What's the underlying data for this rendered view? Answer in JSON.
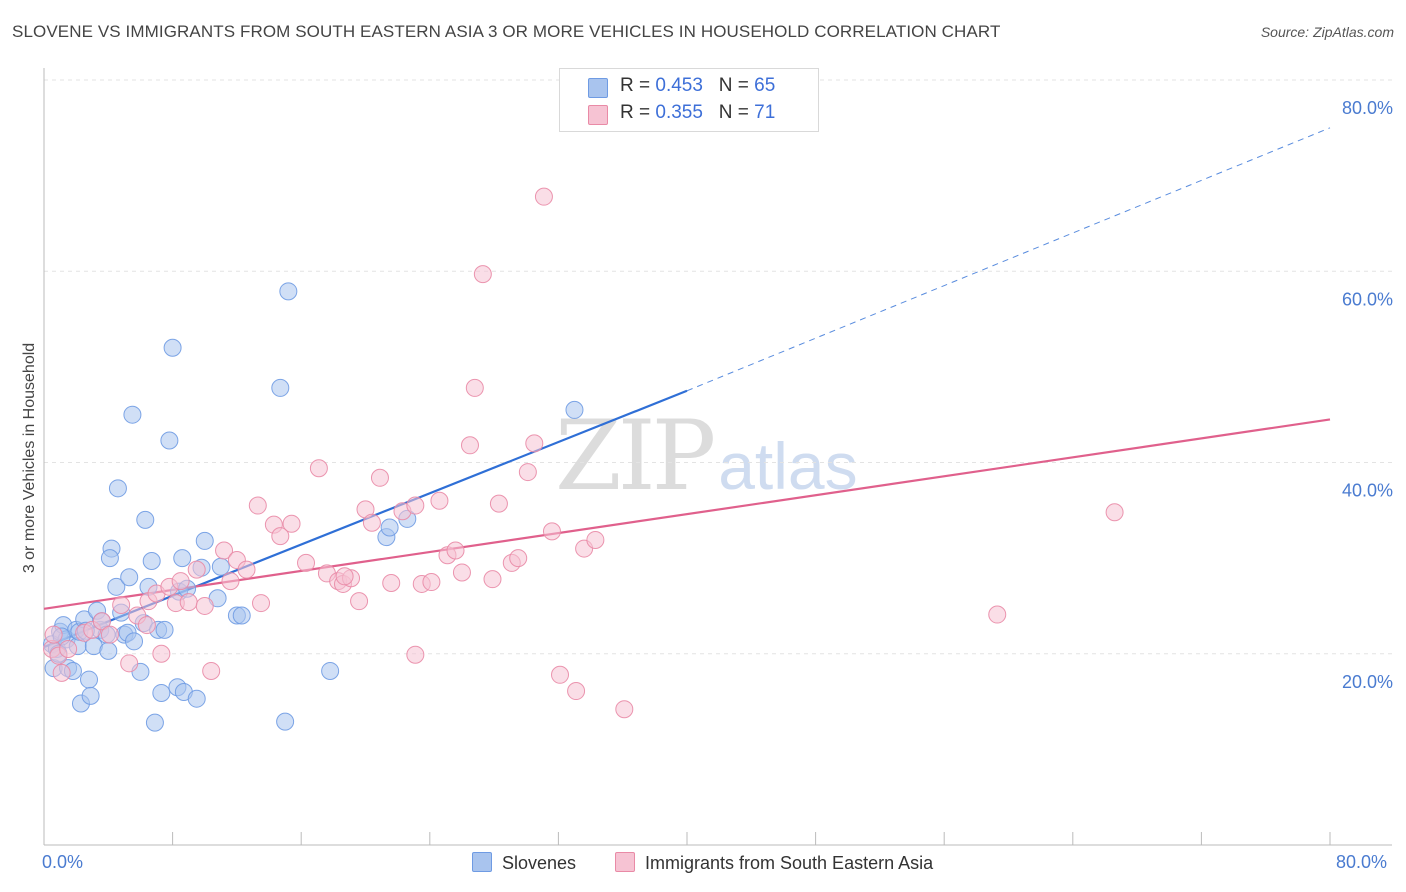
{
  "header": {
    "title": "SLOVENE VS IMMIGRANTS FROM SOUTH EASTERN ASIA 3 OR MORE VEHICLES IN HOUSEHOLD CORRELATION CHART",
    "source_label": "Source:",
    "source_value": "ZipAtlas.com"
  },
  "watermark": {
    "zip": "ZIP",
    "atlas": "atlas"
  },
  "legend": {
    "items": [
      {
        "r_label": "R =",
        "r_value": "0.453",
        "n_label": "N =",
        "n_value": "65"
      },
      {
        "r_label": "R =",
        "r_value": "0.355",
        "n_label": "N =",
        "n_value": "71"
      }
    ]
  },
  "chart_data": {
    "type": "scatter",
    "ylabel": "3 or more Vehicles in Household",
    "xlabel": "",
    "x_axis": {
      "min_label": "0.0%",
      "max_label": "80.0%"
    },
    "xlim": [
      0,
      80
    ],
    "ylim": [
      0,
      82
    ],
    "y_ticks": [
      {
        "value": 20,
        "label": "20.0%"
      },
      {
        "value": 40,
        "label": "40.0%"
      },
      {
        "value": 60,
        "label": "60.0%"
      },
      {
        "value": 80,
        "label": "80.0%"
      }
    ],
    "grid": true,
    "legend_position": "bottom",
    "series": [
      {
        "name": "Slovenes",
        "color": "#6f9be3",
        "fill": "#a9c4ee",
        "trend": {
          "x0": 0,
          "y0": 20.7,
          "x1": 40,
          "y1": 47.5,
          "dash_to_x": 80,
          "dash_y": 75,
          "color": "#2f6fd6"
        },
        "points": [
          [
            0.5,
            21
          ],
          [
            0.6,
            18.5
          ],
          [
            0.8,
            20.5
          ],
          [
            1,
            22.3
          ],
          [
            1.2,
            23
          ],
          [
            1.4,
            21.5
          ],
          [
            1.5,
            18.5
          ],
          [
            1.8,
            18.2
          ],
          [
            2,
            22.5
          ],
          [
            2.1,
            20.8
          ],
          [
            2.2,
            22.3
          ],
          [
            2.3,
            14.8
          ],
          [
            2.5,
            23.6
          ],
          [
            2.8,
            17.3
          ],
          [
            2.9,
            15.6
          ],
          [
            3.1,
            20.8
          ],
          [
            3.3,
            24.5
          ],
          [
            3.5,
            22.5
          ],
          [
            3.6,
            23.4
          ],
          [
            3.9,
            22
          ],
          [
            4,
            20.3
          ],
          [
            4.2,
            31
          ],
          [
            4.1,
            30
          ],
          [
            4.5,
            27
          ],
          [
            4.6,
            37.3
          ],
          [
            4.8,
            24.3
          ],
          [
            5,
            22
          ],
          [
            5.2,
            22.2
          ],
          [
            5.3,
            28
          ],
          [
            5.5,
            45
          ],
          [
            5.6,
            21.3
          ],
          [
            6,
            18.1
          ],
          [
            6.2,
            23.2
          ],
          [
            6.3,
            34
          ],
          [
            6.5,
            27
          ],
          [
            6.7,
            29.7
          ],
          [
            6.9,
            12.8
          ],
          [
            7.1,
            22.5
          ],
          [
            7.3,
            15.9
          ],
          [
            7.5,
            22.5
          ],
          [
            7.8,
            42.3
          ],
          [
            8,
            52
          ],
          [
            8.3,
            16.5
          ],
          [
            8.4,
            26.5
          ],
          [
            8.6,
            30
          ],
          [
            8.7,
            16
          ],
          [
            8.9,
            26.8
          ],
          [
            9.5,
            15.3
          ],
          [
            9.8,
            29
          ],
          [
            10,
            31.8
          ],
          [
            10.8,
            25.8
          ],
          [
            11,
            29.1
          ],
          [
            12,
            24
          ],
          [
            12.3,
            24
          ],
          [
            14.7,
            47.8
          ],
          [
            15,
            12.9
          ],
          [
            15.2,
            57.9
          ],
          [
            17.8,
            18.2
          ],
          [
            21.3,
            32.2
          ],
          [
            21.5,
            33.2
          ],
          [
            22.6,
            34.1
          ],
          [
            33,
            45.5
          ],
          [
            0.9,
            20
          ],
          [
            1.1,
            21.8
          ],
          [
            2.6,
            22.4
          ]
        ]
      },
      {
        "name": "Immigrants from South Eastern Asia",
        "color": "#e98aa6",
        "fill": "#f6c3d3",
        "trend": {
          "x0": 0,
          "y0": 24.7,
          "x1": 80,
          "y1": 44.5,
          "color": "#e0608c"
        },
        "points": [
          [
            0.5,
            20.5
          ],
          [
            0.6,
            22
          ],
          [
            0.9,
            19.8
          ],
          [
            1.1,
            18
          ],
          [
            1.5,
            20.5
          ],
          [
            2.5,
            22.2
          ],
          [
            3,
            22.5
          ],
          [
            3.6,
            23.4
          ],
          [
            4.1,
            22
          ],
          [
            4.8,
            25.1
          ],
          [
            5.3,
            19
          ],
          [
            5.8,
            24
          ],
          [
            6.4,
            23
          ],
          [
            6.5,
            25.5
          ],
          [
            7,
            26.3
          ],
          [
            7.3,
            20
          ],
          [
            7.8,
            27
          ],
          [
            8.2,
            25.3
          ],
          [
            8.5,
            27.6
          ],
          [
            9,
            25.4
          ],
          [
            9.5,
            28.8
          ],
          [
            10,
            25
          ],
          [
            10.4,
            18.2
          ],
          [
            11.2,
            30.8
          ],
          [
            11.6,
            27.6
          ],
          [
            12,
            29.8
          ],
          [
            12.6,
            28.8
          ],
          [
            13.3,
            35.5
          ],
          [
            13.5,
            25.3
          ],
          [
            14.3,
            33.5
          ],
          [
            14.7,
            32.3
          ],
          [
            15.4,
            33.6
          ],
          [
            16.3,
            29.5
          ],
          [
            17.1,
            39.4
          ],
          [
            17.6,
            28.4
          ],
          [
            18.3,
            27.6
          ],
          [
            18.6,
            27.3
          ],
          [
            19.1,
            27.9
          ],
          [
            19.6,
            25.5
          ],
          [
            20,
            35.1
          ],
          [
            20.4,
            33.7
          ],
          [
            20.9,
            38.4
          ],
          [
            21.6,
            27.4
          ],
          [
            22.3,
            34.9
          ],
          [
            23.1,
            35.5
          ],
          [
            23.5,
            27.3
          ],
          [
            24.1,
            27.5
          ],
          [
            24.6,
            36
          ],
          [
            25.1,
            30.3
          ],
          [
            25.6,
            30.8
          ],
          [
            26,
            28.5
          ],
          [
            26.5,
            41.8
          ],
          [
            26.8,
            47.8
          ],
          [
            27.3,
            59.7
          ],
          [
            27.9,
            27.8
          ],
          [
            28.3,
            35.7
          ],
          [
            29.1,
            29.5
          ],
          [
            29.5,
            30
          ],
          [
            30.1,
            39
          ],
          [
            30.5,
            42
          ],
          [
            31.1,
            67.8
          ],
          [
            31.6,
            32.8
          ],
          [
            32.1,
            17.8
          ],
          [
            33.1,
            16.1
          ],
          [
            33.6,
            31
          ],
          [
            34.3,
            31.9
          ],
          [
            36.1,
            14.2
          ],
          [
            18.7,
            28.1
          ],
          [
            23.1,
            19.9
          ],
          [
            59.3,
            24.1
          ],
          [
            66.6,
            34.8
          ]
        ]
      }
    ]
  }
}
